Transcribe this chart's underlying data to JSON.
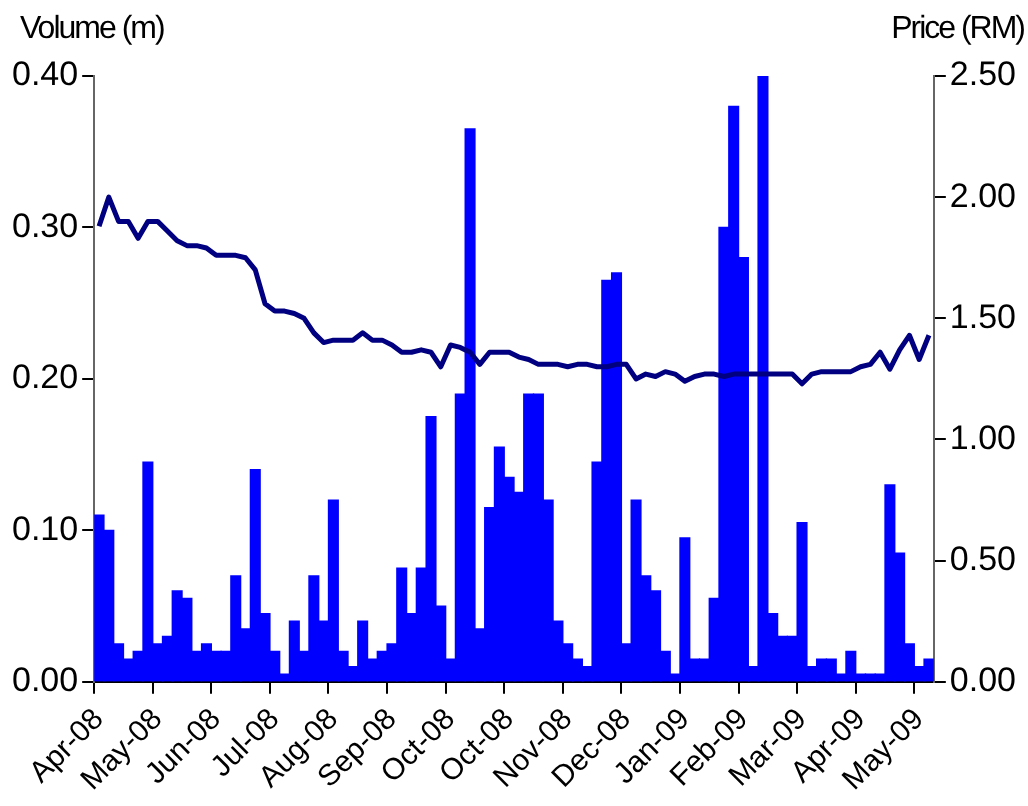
{
  "chart_data": {
    "type": "bar",
    "ylabel": "Volume (m)",
    "y2label": "Price (RM)",
    "categories": [
      "Apr-08",
      null,
      null,
      null,
      null,
      null,
      "May-08",
      null,
      null,
      null,
      null,
      null,
      "Jun-08",
      null,
      null,
      null,
      null,
      null,
      "Jul-08",
      null,
      null,
      null,
      null,
      null,
      "Aug-08",
      null,
      null,
      null,
      null,
      null,
      "Sep-08",
      null,
      null,
      null,
      null,
      null,
      "Oct-08",
      null,
      null,
      null,
      null,
      null,
      "Oct-08",
      null,
      null,
      null,
      null,
      null,
      "Nov-08",
      null,
      null,
      null,
      null,
      null,
      "Dec-08",
      null,
      null,
      null,
      null,
      null,
      "Jan-09",
      null,
      null,
      null,
      null,
      null,
      "Feb-09",
      null,
      null,
      null,
      null,
      null,
      "Mar-09",
      null,
      null,
      null,
      null,
      null,
      "Apr-09",
      null,
      null,
      null,
      null,
      null,
      "May-09",
      null
    ],
    "series": [
      {
        "type": "bar",
        "color": "#0000ff",
        "values": [
          0.11,
          0.1,
          0.025,
          0.015,
          0.02,
          0.145,
          0.025,
          0.03,
          0.06,
          0.055,
          0.02,
          0.025,
          0.02,
          0.02,
          0.07,
          0.035,
          0.14,
          0.045,
          0.02,
          0.005,
          0.04,
          0.02,
          0.07,
          0.04,
          0.12,
          0.02,
          0.01,
          0.04,
          0.015,
          0.02,
          0.025,
          0.075,
          0.045,
          0.075,
          0.175,
          0.05,
          0.015,
          0.19,
          0.365,
          0.035,
          0.115,
          0.155,
          0.135,
          0.125,
          0.19,
          0.19,
          0.12,
          0.04,
          0.025,
          0.015,
          0.01,
          0.145,
          0.265,
          0.27,
          0.025,
          0.12,
          0.07,
          0.06,
          0.02,
          0.005,
          0.095,
          0.015,
          0.015,
          0.055,
          0.3,
          0.38,
          0.28,
          0.01,
          0.4,
          0.045,
          0.03,
          0.03,
          0.105,
          0.01,
          0.015,
          0.015,
          0.005,
          0.02,
          0.005,
          0.005,
          0.005,
          0.13,
          0.085,
          0.025,
          0.01,
          0.015
        ]
      },
      {
        "type": "line",
        "axis": "y2",
        "color": "#000080",
        "values": [
          1.88,
          2.0,
          1.9,
          1.9,
          1.83,
          1.9,
          1.9,
          1.86,
          1.82,
          1.8,
          1.8,
          1.79,
          1.76,
          1.76,
          1.76,
          1.75,
          1.7,
          1.56,
          1.53,
          1.53,
          1.52,
          1.5,
          1.44,
          1.4,
          1.41,
          1.41,
          1.41,
          1.44,
          1.41,
          1.41,
          1.39,
          1.36,
          1.36,
          1.37,
          1.36,
          1.3,
          1.39,
          1.38,
          1.36,
          1.31,
          1.36,
          1.36,
          1.36,
          1.34,
          1.33,
          1.31,
          1.31,
          1.31,
          1.3,
          1.31,
          1.31,
          1.3,
          1.3,
          1.31,
          1.31,
          1.25,
          1.27,
          1.26,
          1.28,
          1.27,
          1.24,
          1.26,
          1.27,
          1.27,
          1.26,
          1.27,
          1.27,
          1.27,
          1.27,
          1.27,
          1.27,
          1.27,
          1.23,
          1.27,
          1.28,
          1.28,
          1.28,
          1.28,
          1.3,
          1.31,
          1.36,
          1.29,
          1.37,
          1.43,
          1.33,
          1.43
        ]
      }
    ],
    "ylim": [
      0,
      0.4
    ],
    "yticks": [
      {
        "value": 0,
        "label": "0.00"
      },
      {
        "value": 0.1,
        "label": "0.10"
      },
      {
        "value": 0.2,
        "label": "0.20"
      },
      {
        "value": 0.3,
        "label": "0.30"
      },
      {
        "value": 0.4,
        "label": "0.40"
      }
    ],
    "y2lim": [
      0,
      2.5
    ],
    "y2ticks": [
      {
        "value": 0,
        "label": "0.00"
      },
      {
        "value": 0.5,
        "label": "0.50"
      },
      {
        "value": 1,
        "label": "1.00"
      },
      {
        "value": 1.5,
        "label": "1.50"
      },
      {
        "value": 2,
        "label": "2.00"
      },
      {
        "value": 2.5,
        "label": "2.50"
      }
    ],
    "grid": false,
    "legend": false,
    "marker": "none",
    "line_style": "solid"
  }
}
